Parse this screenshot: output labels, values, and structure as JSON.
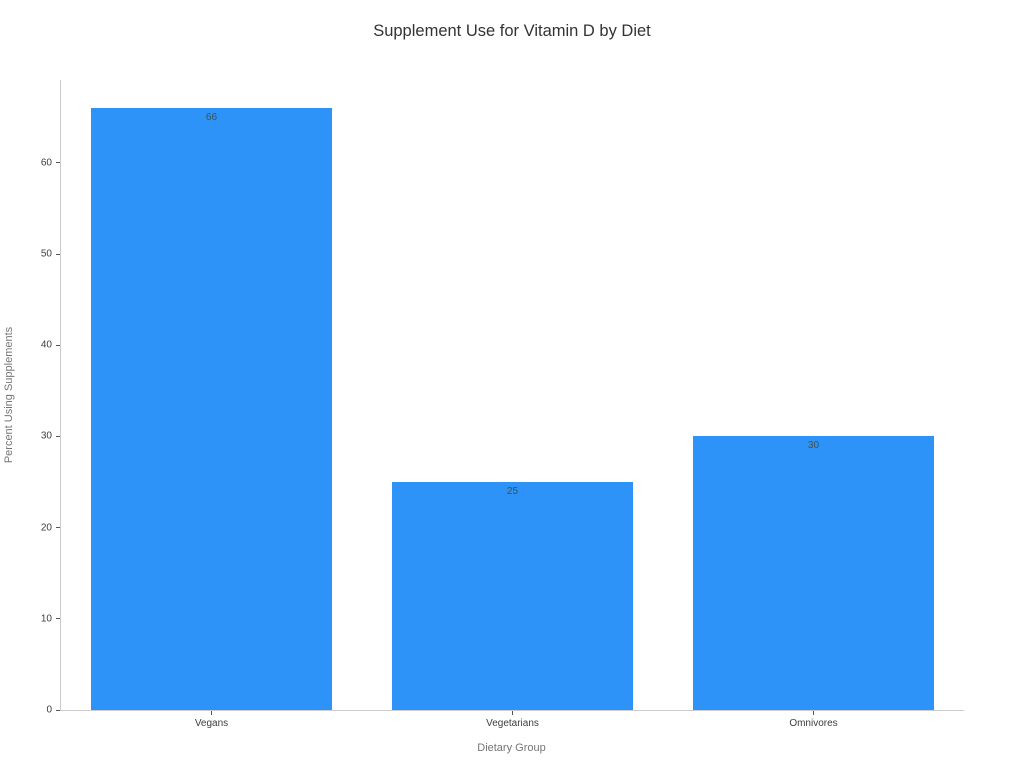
{
  "chart_data": {
    "type": "bar",
    "title": "Supplement Use for Vitamin D by Diet",
    "xlabel": "Dietary Group",
    "ylabel": "Percent Using Supplements",
    "categories": [
      "Vegans",
      "Vegetarians",
      "Omnivores"
    ],
    "values": [
      66,
      25,
      30
    ],
    "value_labels": [
      "66",
      "25",
      "30"
    ],
    "yticks": [
      0,
      10,
      20,
      30,
      40,
      50,
      60
    ],
    "ylim": [
      0,
      69.1
    ],
    "grid": false,
    "legend": "none",
    "bar_width_fraction": 0.8,
    "colors": {
      "bar": "#2e93f8",
      "spine": "#cccccc",
      "tick_label": "#3d3d3d",
      "axis_title": "#757575",
      "title": "#333333",
      "value_label": "#41514e"
    }
  }
}
